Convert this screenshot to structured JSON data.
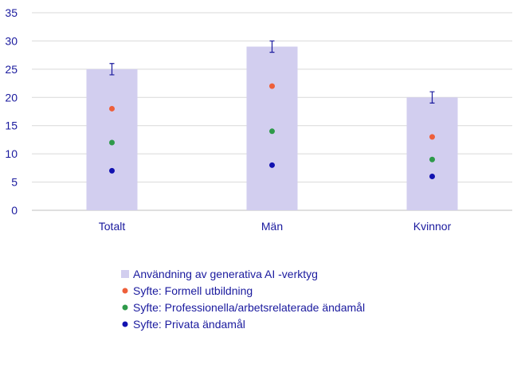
{
  "chart_data": {
    "type": "bar",
    "title": "",
    "xlabel": "",
    "ylabel": "",
    "ylim": [
      0,
      35
    ],
    "yticks": [
      0,
      5,
      10,
      15,
      20,
      25,
      30,
      35
    ],
    "grid": true,
    "legend_position": "bottom",
    "categories": [
      "Totalt",
      "Män",
      "Kvinnor"
    ],
    "bar_series": {
      "name": "Användning av generativa AI -verktyg",
      "color": "#d2ceef",
      "values": [
        25,
        29,
        20
      ],
      "error": [
        1,
        1,
        1
      ]
    },
    "point_series": [
      {
        "name": "Syfte: Formell utbildning",
        "color": "#ee5f3a",
        "values": [
          18,
          22,
          13
        ]
      },
      {
        "name": "Syfte: Professionella/arbetsrelaterade ändamål",
        "color": "#2e9a4a",
        "values": [
          12,
          14,
          9
        ]
      },
      {
        "name": "Syfte: Privata ändamål",
        "color": "#1212b0",
        "values": [
          7,
          8,
          6
        ]
      }
    ]
  }
}
